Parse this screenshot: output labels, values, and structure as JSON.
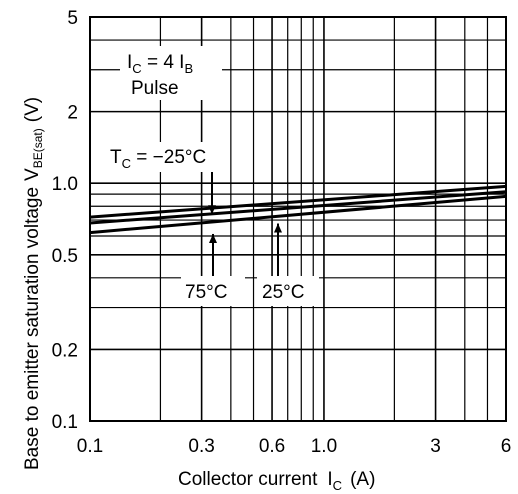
{
  "chart_data": {
    "type": "line",
    "xlabel": "Collector current",
    "xlabel_symbol": "I",
    "xlabel_subscript": "C",
    "xlabel_unit": "(A)",
    "ylabel": "Base to emitter saturation voltage",
    "ylabel_symbol": "V",
    "ylabel_subscript": "BE(sat)",
    "ylabel_unit": "(V)",
    "x_scale": "log",
    "y_scale": "log",
    "xlim": [
      0.1,
      6
    ],
    "ylim": [
      0.1,
      5
    ],
    "grid": true,
    "x_ticks": [
      {
        "value": 0.1,
        "label": "0.1"
      },
      {
        "value": 0.3,
        "label": "0.3"
      },
      {
        "value": 0.6,
        "label": "0.6"
      },
      {
        "value": 1.0,
        "label": "1.0"
      },
      {
        "value": 3,
        "label": "3"
      },
      {
        "value": 6,
        "label": "6"
      }
    ],
    "x_minor_grid": [
      0.2,
      0.4,
      0.5,
      0.7,
      0.8,
      0.9,
      2,
      4,
      5
    ],
    "y_ticks": [
      {
        "value": 0.1,
        "label": "0.1"
      },
      {
        "value": 0.2,
        "label": "0.2"
      },
      {
        "value": 0.5,
        "label": "0.5"
      },
      {
        "value": 1.0,
        "label": "1.0"
      },
      {
        "value": 2,
        "label": "2"
      },
      {
        "value": 5,
        "label": "5"
      }
    ],
    "y_minor_grid": [
      0.3,
      0.4,
      0.6,
      0.7,
      0.8,
      0.9,
      3,
      4
    ],
    "series": [
      {
        "name": "-25°C",
        "x": [
          0.1,
          6
        ],
        "y": [
          0.72,
          0.97
        ]
      },
      {
        "name": "25°C",
        "x": [
          0.1,
          6
        ],
        "y": [
          0.68,
          0.92
        ]
      },
      {
        "name": "75°C",
        "x": [
          0.1,
          6
        ],
        "y": [
          0.62,
          0.88
        ]
      }
    ],
    "condition_labels": [
      {
        "text": "I",
        "sub": "C",
        "rest": " = 4 I",
        "sub2": "B"
      },
      {
        "text": "Pulse"
      }
    ],
    "series_labels": {
      "tc_prefix": "T",
      "tc_sub": "C",
      "tc_value": " = −25°C",
      "t75": "75°C",
      "t25": "25°C"
    }
  }
}
